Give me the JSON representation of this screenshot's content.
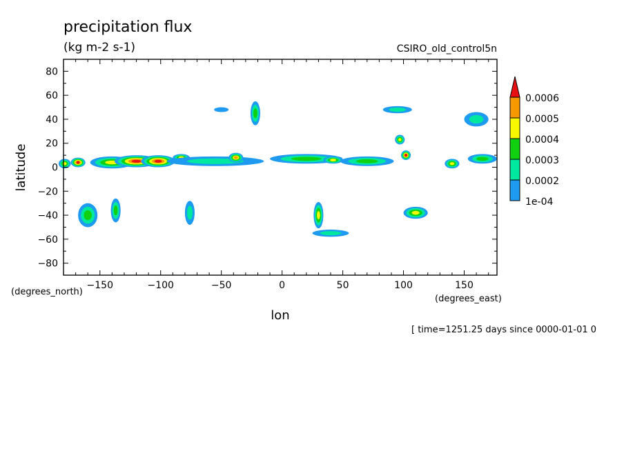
{
  "chart_data": {
    "type": "heatmap",
    "title": "precipitation flux",
    "units": "(kg m-2 s-1)",
    "model_label": "CSIRO_old_control5n",
    "xlabel": "lon",
    "ylabel": "latitude",
    "x_units_label": "(degrees_east)",
    "y_units_label": "(degrees_north)",
    "time_note": "[ time=1251.25 days since 0000-01-01 0",
    "xlim": [
      -180,
      177
    ],
    "ylim": [
      -90,
      90
    ],
    "x_ticks": [
      -150,
      -100,
      -50,
      0,
      50,
      100,
      150
    ],
    "x_tick_labels": [
      "−150",
      "−100",
      "−50",
      "0",
      "50",
      "100",
      "150"
    ],
    "y_ticks": [
      80,
      60,
      40,
      20,
      0,
      -20,
      -40,
      -60,
      -80
    ],
    "y_tick_labels": [
      "80",
      "60",
      "40",
      "20",
      "0",
      "−20",
      "−40",
      "−60",
      "−80"
    ],
    "colorbar": {
      "levels": [
        0.0001,
        0.0002,
        0.0003,
        0.0004,
        0.0005,
        0.0006
      ],
      "level_labels": [
        "1e-04",
        "0.0002",
        "0.0003",
        "0.0004",
        "0.0005",
        "0.0006"
      ],
      "colors": [
        "#1e9bf0",
        "#00e8a0",
        "#10d010",
        "#f8f800",
        "#f89800",
        "#e81010"
      ]
    },
    "features": [
      {
        "lon": -179,
        "lat": 3,
        "rx": 5,
        "ry": 4,
        "level": 3
      },
      {
        "lon": -168,
        "lat": 4,
        "rx": 6,
        "ry": 4,
        "level": 5
      },
      {
        "lon": -140,
        "lat": 4,
        "rx": 18,
        "ry": 5,
        "level": 3
      },
      {
        "lon": -120,
        "lat": 5,
        "rx": 18,
        "ry": 5,
        "level": 5
      },
      {
        "lon": -102,
        "lat": 5,
        "rx": 14,
        "ry": 5,
        "level": 5
      },
      {
        "lon": -83,
        "lat": 8,
        "rx": 7,
        "ry": 3,
        "level": 3
      },
      {
        "lon": -55,
        "lat": 5,
        "rx": 40,
        "ry": 4,
        "level": 1
      },
      {
        "lon": -38,
        "lat": 8,
        "rx": 6,
        "ry": 4,
        "level": 4
      },
      {
        "lon": 20,
        "lat": 7,
        "rx": 30,
        "ry": 4,
        "level": 2
      },
      {
        "lon": 42,
        "lat": 6,
        "rx": 8,
        "ry": 3,
        "level": 3
      },
      {
        "lon": 70,
        "lat": 5,
        "rx": 22,
        "ry": 4,
        "level": 2
      },
      {
        "lon": 102,
        "lat": 10,
        "rx": 4,
        "ry": 4,
        "level": 5
      },
      {
        "lon": 97,
        "lat": 23,
        "rx": 4,
        "ry": 4,
        "level": 3
      },
      {
        "lon": 140,
        "lat": 3,
        "rx": 6,
        "ry": 4,
        "level": 3
      },
      {
        "lon": 165,
        "lat": 7,
        "rx": 12,
        "ry": 4,
        "level": 2
      },
      {
        "lon": -160,
        "lat": -40,
        "rx": 8,
        "ry": 10,
        "level": 2
      },
      {
        "lon": -137,
        "lat": -36,
        "rx": 4,
        "ry": 10,
        "level": 2
      },
      {
        "lon": -76,
        "lat": -38,
        "rx": 4,
        "ry": 10,
        "level": 1
      },
      {
        "lon": 30,
        "lat": -40,
        "rx": 4,
        "ry": 11,
        "level": 3
      },
      {
        "lon": 110,
        "lat": -38,
        "rx": 10,
        "ry": 5,
        "level": 3
      },
      {
        "lon": 40,
        "lat": -55,
        "rx": 15,
        "ry": 3,
        "level": 1
      },
      {
        "lon": -22,
        "lat": 45,
        "rx": 4,
        "ry": 10,
        "level": 2
      },
      {
        "lon": 160,
        "lat": 40,
        "rx": 10,
        "ry": 6,
        "level": 1
      },
      {
        "lon": 95,
        "lat": 48,
        "rx": 12,
        "ry": 3,
        "level": 1
      },
      {
        "lon": -50,
        "lat": 48,
        "rx": 6,
        "ry": 2,
        "level": 0
      }
    ]
  }
}
